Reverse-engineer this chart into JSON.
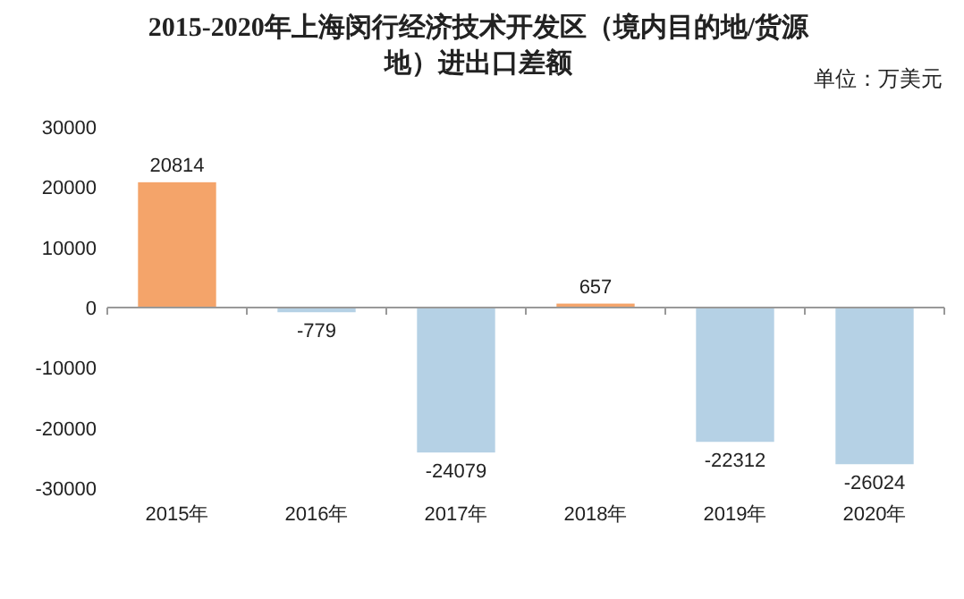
{
  "chart_data": {
    "type": "bar",
    "title": "2015-2020年上海闵行经济技术开发区（境内目的地/货源地）进出口差额",
    "subtitle": "单位：万美元",
    "categories": [
      "2015年",
      "2016年",
      "2017年",
      "2018年",
      "2019年",
      "2020年"
    ],
    "values": [
      20814,
      -779,
      -24079,
      657,
      -22312,
      -26024
    ],
    "colors": [
      "#f4a46a",
      "#b5d1e5",
      "#b5d1e5",
      "#f4a46a",
      "#b5d1e5",
      "#b5d1e5"
    ],
    "ylim": [
      -30000,
      30000
    ],
    "yticks": [
      -30000,
      -20000,
      -10000,
      0,
      10000,
      20000,
      30000
    ],
    "data_labels": true
  }
}
